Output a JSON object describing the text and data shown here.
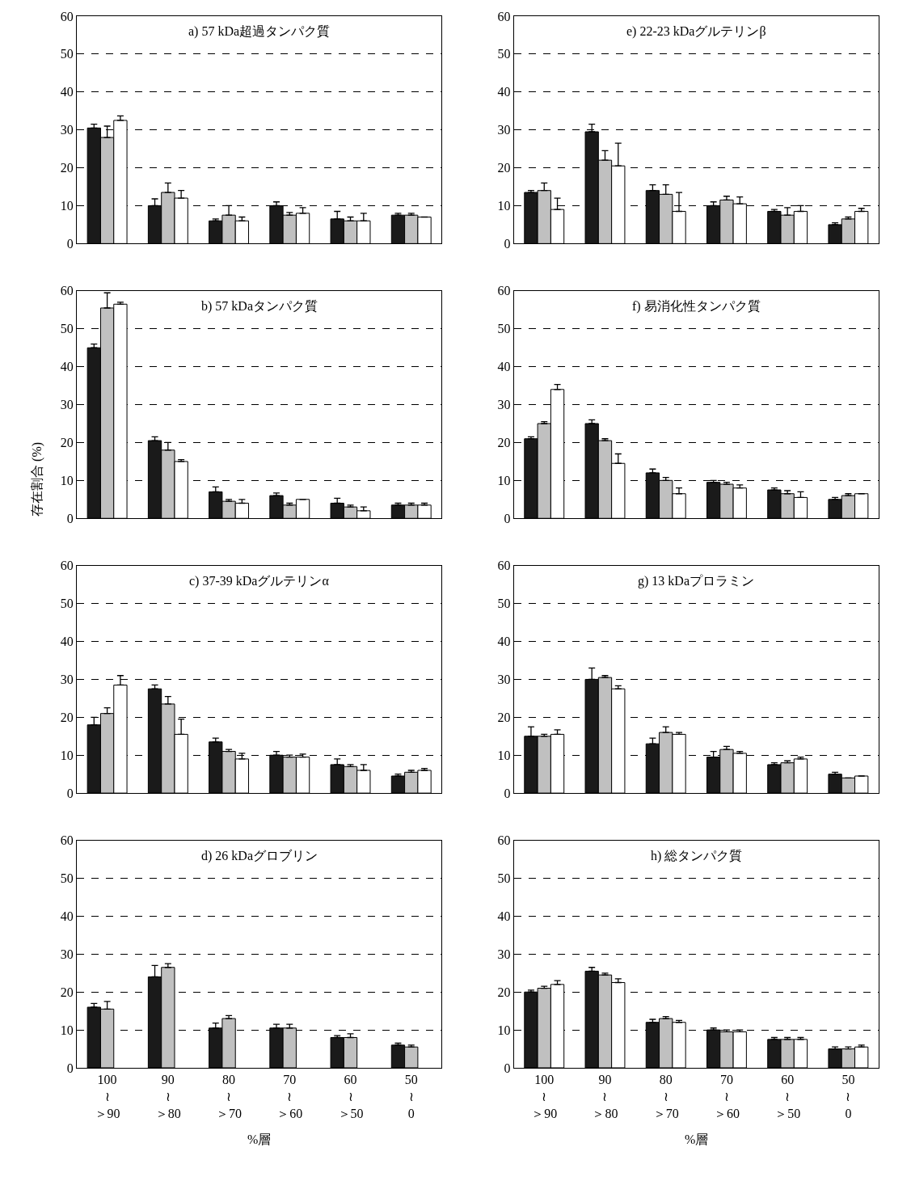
{
  "chart_data": [
    {
      "type": "bar",
      "title": "a) 57 kDa超過タンパク質",
      "categories": [
        null,
        null,
        null,
        null,
        null,
        null
      ],
      "ylim": [
        0,
        60
      ],
      "yticks": [
        0,
        10,
        20,
        30,
        40,
        50,
        60
      ],
      "grid": "y",
      "tick_labels": "y",
      "series": [
        {
          "color": "#1a1a1a",
          "values": [
            30.5,
            10,
            6,
            10,
            6.5,
            7.5
          ],
          "errors": [
            [
              30.5,
              31.5
            ],
            [
              10,
              11.8
            ],
            [
              6,
              6.5
            ],
            [
              10,
              11
            ],
            [
              6.5,
              8.5
            ],
            [
              7.5,
              8
            ]
          ]
        },
        {
          "color": "#c0c0c0",
          "values": [
            28,
            13.5,
            7.5,
            7.5,
            6,
            7.5
          ],
          "errors": [
            [
              28,
              31
            ],
            [
              13.5,
              16
            ],
            [
              7.5,
              10
            ],
            [
              7.5,
              8.2
            ],
            [
              6,
              7
            ],
            [
              7.5,
              8
            ]
          ]
        },
        {
          "color": "#ffffff",
          "values": [
            32.5,
            12,
            6,
            8,
            6,
            7
          ],
          "errors": [
            [
              32.5,
              33.7
            ],
            [
              12,
              14
            ],
            [
              6,
              7
            ],
            [
              8,
              9.5
            ],
            [
              6,
              8
            ],
            null
          ]
        }
      ]
    },
    {
      "type": "bar",
      "title": "e) 22-23 kDaグルテリンβ",
      "categories": [
        null,
        null,
        null,
        null,
        null,
        null
      ],
      "ylim": [
        0,
        60
      ],
      "yticks": [
        0,
        10,
        20,
        30,
        40,
        50,
        60
      ],
      "grid": "y",
      "tick_labels": "y",
      "series": [
        {
          "color": "#1a1a1a",
          "values": [
            13.5,
            29.5,
            14,
            10,
            8.5,
            5
          ],
          "errors": [
            [
              13.5,
              14
            ],
            [
              29.5,
              31.5
            ],
            [
              14,
              15.5
            ],
            [
              10,
              11
            ],
            [
              8.5,
              9
            ],
            [
              5,
              5.5
            ]
          ]
        },
        {
          "color": "#c0c0c0",
          "values": [
            14,
            22,
            13,
            11.5,
            7.5,
            6.5
          ],
          "errors": [
            [
              14,
              16
            ],
            [
              22,
              24.5
            ],
            [
              13,
              15.5
            ],
            [
              11.5,
              12.5
            ],
            [
              7.5,
              9.5
            ],
            [
              6.5,
              7
            ]
          ]
        },
        {
          "color": "#ffffff",
          "values": [
            9,
            20.5,
            8.5,
            10.5,
            8.5,
            8.5
          ],
          "errors": [
            [
              9,
              12
            ],
            [
              20.5,
              26.5
            ],
            [
              8.5,
              13.5
            ],
            [
              10.5,
              12.3
            ],
            [
              8.5,
              10
            ],
            [
              8.5,
              9.3
            ]
          ]
        }
      ]
    },
    {
      "type": "bar",
      "title": "b) 57 kDaタンパク質",
      "categories": [
        null,
        null,
        null,
        null,
        null,
        null
      ],
      "ylim": [
        0,
        60
      ],
      "yticks": [
        0,
        10,
        20,
        30,
        40,
        50,
        60
      ],
      "grid": "y",
      "tick_labels": "y",
      "series": [
        {
          "color": "#1a1a1a",
          "values": [
            45,
            20.5,
            7,
            6,
            4,
            3.5
          ],
          "errors": [
            [
              45,
              46
            ],
            [
              20.5,
              21.5
            ],
            [
              7,
              8.3
            ],
            [
              6,
              6.7
            ],
            [
              4,
              5.3
            ],
            [
              3.5,
              4
            ]
          ]
        },
        {
          "color": "#c0c0c0",
          "values": [
            55.5,
            18,
            4.5,
            3.5,
            3,
            3.5
          ],
          "errors": [
            [
              55.5,
              59.5
            ],
            [
              18,
              20
            ],
            [
              4.5,
              5
            ],
            [
              3.5,
              4
            ],
            [
              3,
              3.5
            ],
            [
              3.5,
              4
            ]
          ]
        },
        {
          "color": "#ffffff",
          "values": [
            56.5,
            15,
            4,
            5,
            2,
            3.5
          ],
          "errors": [
            [
              56.5,
              57
            ],
            [
              15,
              15.5
            ],
            [
              4,
              5
            ],
            null,
            [
              2,
              3
            ],
            [
              3.5,
              4
            ]
          ]
        }
      ]
    },
    {
      "type": "bar",
      "title": "f) 易消化性タンパク質",
      "categories": [
        null,
        null,
        null,
        null,
        null,
        null
      ],
      "ylim": [
        0,
        60
      ],
      "yticks": [
        0,
        10,
        20,
        30,
        40,
        50,
        60
      ],
      "grid": "y",
      "tick_labels": "y",
      "series": [
        {
          "color": "#1a1a1a",
          "values": [
            21,
            25,
            12,
            9.5,
            7.5,
            5
          ],
          "errors": [
            [
              21,
              21.5
            ],
            [
              25,
              26
            ],
            [
              12,
              13
            ],
            [
              9.5,
              10
            ],
            [
              7.5,
              8
            ],
            [
              5,
              5.5
            ]
          ]
        },
        {
          "color": "#c0c0c0",
          "values": [
            25,
            20.5,
            10,
            9,
            6.5,
            6
          ],
          "errors": [
            [
              25,
              25.5
            ],
            [
              20.5,
              21
            ],
            [
              10,
              10.8
            ],
            [
              9,
              9.5
            ],
            [
              6.5,
              7.3
            ],
            [
              6,
              6.5
            ]
          ]
        },
        {
          "color": "#ffffff",
          "values": [
            34,
            14.5,
            6.5,
            8,
            5.5,
            6.5
          ],
          "errors": [
            [
              34,
              35.3
            ],
            [
              14.5,
              17
            ],
            [
              6.5,
              8
            ],
            [
              8,
              8.8
            ],
            [
              5.5,
              7
            ],
            null
          ]
        }
      ]
    },
    {
      "type": "bar",
      "title": "c) 37-39 kDaグルテリンα",
      "ylabel": "存在割合 (%)",
      "categories": [
        null,
        null,
        null,
        null,
        null,
        null
      ],
      "ylim": [
        0,
        60
      ],
      "yticks": [
        0,
        10,
        20,
        30,
        40,
        50,
        60
      ],
      "grid": "y",
      "tick_labels": "y",
      "series": [
        {
          "color": "#1a1a1a",
          "values": [
            18,
            27.5,
            13.5,
            10,
            7.5,
            4.5
          ],
          "errors": [
            [
              18,
              20
            ],
            [
              27.5,
              28.5
            ],
            [
              13.5,
              14.5
            ],
            [
              10,
              11
            ],
            [
              7.5,
              9
            ],
            [
              4.5,
              5
            ]
          ]
        },
        {
          "color": "#c0c0c0",
          "values": [
            21,
            23.5,
            11,
            9.5,
            7,
            5.5
          ],
          "errors": [
            [
              21,
              22.5
            ],
            [
              23.5,
              25.5
            ],
            [
              11,
              11.5
            ],
            [
              9.5,
              10
            ],
            [
              7,
              7.5
            ],
            [
              5.5,
              6
            ]
          ]
        },
        {
          "color": "#ffffff",
          "values": [
            28.5,
            15.5,
            9,
            9.5,
            6,
            6
          ],
          "errors": [
            [
              28.5,
              31
            ],
            [
              15.5,
              19.5
            ],
            [
              9,
              10.5
            ],
            [
              9.5,
              10.3
            ],
            [
              6,
              7.5
            ],
            [
              6,
              6.5
            ]
          ]
        }
      ]
    },
    {
      "type": "bar",
      "title": "g) 13 kDaプロラミン",
      "categories": [
        null,
        null,
        null,
        null,
        null,
        null
      ],
      "ylim": [
        0,
        60
      ],
      "yticks": [
        0,
        10,
        20,
        30,
        40,
        50,
        60
      ],
      "grid": "y",
      "tick_labels": "y",
      "series": [
        {
          "color": "#1a1a1a",
          "values": [
            15,
            30,
            13,
            9.5,
            7.5,
            5
          ],
          "errors": [
            [
              15,
              17.5
            ],
            [
              30,
              33
            ],
            [
              13,
              14.5
            ],
            [
              9.5,
              11
            ],
            [
              7.5,
              8
            ],
            [
              5,
              5.5
            ]
          ]
        },
        {
          "color": "#c0c0c0",
          "values": [
            15,
            30.5,
            16,
            11.5,
            8,
            4
          ],
          "errors": [
            [
              15,
              15.5
            ],
            [
              30.5,
              31
            ],
            [
              16,
              17.5
            ],
            [
              11.5,
              12.3
            ],
            [
              8,
              8.5
            ],
            null
          ]
        },
        {
          "color": "#ffffff",
          "values": [
            15.5,
            27.5,
            15.5,
            10.5,
            9,
            4.5
          ],
          "errors": [
            [
              15.5,
              16.7
            ],
            [
              27.5,
              28.3
            ],
            [
              15.5,
              16
            ],
            [
              10.5,
              11
            ],
            [
              9,
              9.5
            ],
            null
          ]
        }
      ]
    },
    {
      "type": "bar",
      "title": "d) 26 kDaグロブリン",
      "xlabel": "%層",
      "categories": [
        "100\n≀\n＞90",
        "90\n≀\n＞80",
        "80\n≀\n＞70",
        "70\n≀\n＞60",
        "60\n≀\n＞50",
        "50\n≀\n0"
      ],
      "ylim": [
        0,
        60
      ],
      "yticks": [
        0,
        10,
        20,
        30,
        40,
        50,
        60
      ],
      "grid": "y",
      "series": [
        {
          "color": "#1a1a1a",
          "values": [
            16,
            24,
            10.5,
            10.5,
            8,
            6
          ],
          "errors": [
            [
              16,
              17
            ],
            [
              24,
              27
            ],
            [
              10.5,
              11.8
            ],
            [
              10.5,
              11.5
            ],
            [
              8,
              8.5
            ],
            [
              6,
              6.5
            ]
          ]
        },
        {
          "color": "#c0c0c0",
          "values": [
            15.5,
            26.5,
            13,
            10.5,
            8,
            5.5
          ],
          "errors": [
            [
              15.5,
              17.5
            ],
            [
              26.5,
              27.5
            ],
            [
              13,
              13.8
            ],
            [
              10.5,
              11.5
            ],
            [
              8,
              9
            ],
            [
              5.5,
              6
            ]
          ]
        },
        {
          "color": "#ffffff",
          "values": [
            null,
            null,
            null,
            null,
            null,
            null
          ]
        }
      ]
    },
    {
      "type": "bar",
      "title": "h) 総タンパク質",
      "xlabel": "%層",
      "categories": [
        "100\n≀\n＞90",
        "90\n≀\n＞80",
        "80\n≀\n＞70",
        "70\n≀\n＞60",
        "60\n≀\n＞50",
        "50\n≀\n0"
      ],
      "ylim": [
        0,
        60
      ],
      "yticks": [
        0,
        10,
        20,
        30,
        40,
        50,
        60
      ],
      "grid": "y",
      "series": [
        {
          "color": "#1a1a1a",
          "values": [
            20,
            25.5,
            12,
            10,
            7.5,
            5
          ],
          "errors": [
            [
              20,
              20.5
            ],
            [
              25.5,
              26.5
            ],
            [
              12,
              12.8
            ],
            [
              10,
              10.5
            ],
            [
              7.5,
              8
            ],
            [
              5,
              5.5
            ]
          ]
        },
        {
          "color": "#c0c0c0",
          "values": [
            21,
            24.5,
            13,
            9.5,
            7.5,
            5
          ],
          "errors": [
            [
              21,
              21.5
            ],
            [
              24.5,
              25
            ],
            [
              13,
              13.5
            ],
            [
              9.5,
              10
            ],
            [
              7.5,
              8
            ],
            [
              5,
              5.5
            ]
          ]
        },
        {
          "color": "#ffffff",
          "values": [
            22,
            22.5,
            12,
            9.5,
            7.5,
            5.5
          ],
          "errors": [
            [
              22,
              23
            ],
            [
              22.5,
              23.5
            ],
            [
              12,
              12.5
            ],
            [
              9.5,
              10
            ],
            [
              7.5,
              8
            ],
            [
              5.5,
              6
            ]
          ]
        }
      ]
    }
  ]
}
